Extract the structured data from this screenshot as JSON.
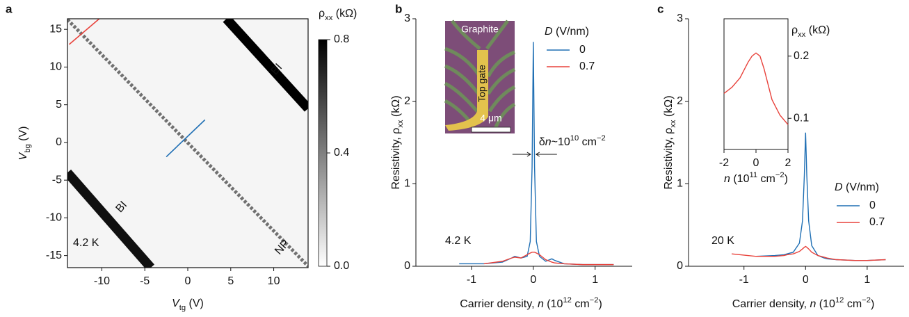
{
  "chart_data": [
    {
      "type": "heatmap",
      "panel": "a",
      "xlabel": [
        {
          "text": "V",
          "style": "i"
        },
        {
          "text": "tg",
          "style": "sub"
        },
        {
          "text": " (V)"
        }
      ],
      "ylabel": [
        {
          "text": "V",
          "style": "i"
        },
        {
          "text": "bg",
          "style": "sub"
        },
        {
          "text": " (V)"
        }
      ],
      "xlim": [
        -14,
        14
      ],
      "ylim": [
        -16.6,
        16.4
      ],
      "xticks": [
        -10,
        -5,
        0,
        5,
        10
      ],
      "yticks": [
        -15,
        -10,
        -5,
        0,
        5,
        10,
        15
      ],
      "colorbar": {
        "label": [
          {
            "text": "ρ"
          },
          {
            "text": "xx",
            "style": "sub"
          },
          {
            "text": " (kΩ)"
          }
        ],
        "lim": [
          0,
          0.8
        ],
        "ticks": [
          {
            "value": 0,
            "label": "0.0"
          },
          0.4,
          0.8
        ],
        "colors": [
          "#ffffff",
          "#000000"
        ]
      },
      "background": 0.03,
      "features": [
        {
          "label": "BI",
          "x": [
            4.5,
            14
          ],
          "y": [
            16.4,
            4.5
          ],
          "value": 0.8,
          "width": 1.1,
          "dashed": false
        },
        {
          "label": "BI",
          "x": [
            -14,
            -4.3
          ],
          "y": [
            -4,
            -16.6
          ],
          "value": 0.75,
          "width": 1.1,
          "dashed": false
        },
        {
          "label": "NP",
          "x": [
            -14,
            14
          ],
          "y": [
            16.3,
            -16.4
          ],
          "value": 0.45,
          "width": 0.4,
          "dashed": true
        }
      ],
      "cuts": [
        {
          "color": "#e8423b",
          "x": [
            -13.8,
            -10.3
          ],
          "y": [
            13,
            16.4
          ]
        },
        {
          "color": "#1f6fb4",
          "x": [
            -2.5,
            2
          ],
          "y": [
            -1.9,
            3
          ]
        }
      ],
      "annotation": "4.2 K"
    },
    {
      "type": "line",
      "panel": "b",
      "xlabel": [
        {
          "text": "Carrier density, "
        },
        {
          "text": "n",
          "style": "i"
        },
        {
          "text": " (10"
        },
        {
          "text": "12",
          "style": "sup"
        },
        {
          "text": " cm"
        },
        {
          "text": "−2",
          "style": "sup"
        },
        {
          "text": ")"
        }
      ],
      "ylabel": [
        {
          "text": "Resistivity, ρ"
        },
        {
          "text": "xx",
          "style": "sub"
        },
        {
          "text": " (kΩ)"
        }
      ],
      "xlim": [
        -1.9,
        1.6
      ],
      "ylim": [
        0,
        3
      ],
      "xticks": [
        -1,
        0,
        1
      ],
      "yticks": [
        0,
        1,
        2,
        3
      ],
      "x": [
        -1.2,
        -0.8,
        -0.5,
        -0.35,
        -0.3,
        -0.2,
        -0.1,
        -0.05,
        -0.02,
        0,
        0.02,
        0.05,
        0.1,
        0.2,
        0.3,
        0.35,
        0.5,
        0.8,
        1.0,
        1.3
      ],
      "legend_title": [
        {
          "text": "D",
          "style": "i"
        },
        {
          "text": " (V/nm)"
        }
      ],
      "series": [
        {
          "name": "0",
          "color": "#1f6fb4",
          "values": [
            0.03,
            0.03,
            0.05,
            0.1,
            0.12,
            0.1,
            0.12,
            0.3,
            1.2,
            2.72,
            1.2,
            0.3,
            0.12,
            0.06,
            0.09,
            0.07,
            0.03,
            0.02,
            0.02,
            0.02
          ]
        },
        {
          "name": "0.7",
          "color": "#e8423b",
          "values": [
            null,
            0.03,
            0.06,
            0.1,
            0.11,
            0.1,
            0.14,
            0.16,
            0.17,
            0.17,
            0.17,
            0.16,
            0.14,
            0.08,
            0.05,
            0.04,
            0.03,
            0.02,
            0.02,
            0.02
          ]
        }
      ],
      "annotation": "4.2 K",
      "width_label": [
        {
          "text": "δ"
        },
        {
          "text": "n",
          "style": "i"
        },
        {
          "text": "~10"
        },
        {
          "text": "10",
          "style": "sup"
        },
        {
          "text": " cm"
        },
        {
          "text": "−2",
          "style": "sup"
        }
      ],
      "inset": {
        "type": "image",
        "labels": [
          "Graphite",
          "Top gate"
        ],
        "scalebar": "4 μm"
      }
    },
    {
      "type": "line",
      "panel": "c",
      "xlabel": [
        {
          "text": "Carrier density, "
        },
        {
          "text": "n",
          "style": "i"
        },
        {
          "text": " (10"
        },
        {
          "text": "12",
          "style": "sup"
        },
        {
          "text": " cm"
        },
        {
          "text": "−2",
          "style": "sup"
        },
        {
          "text": ")"
        }
      ],
      "ylabel": [
        {
          "text": "Resistivity, ρ"
        },
        {
          "text": "xx",
          "style": "sub"
        },
        {
          "text": " (kΩ)"
        }
      ],
      "xlim": [
        -1.9,
        1.6
      ],
      "ylim": [
        0,
        3
      ],
      "xticks": [
        -1,
        0,
        1
      ],
      "yticks": [
        0,
        1,
        2,
        3
      ],
      "x": [
        -1.2,
        -0.8,
        -0.5,
        -0.35,
        -0.3,
        -0.2,
        -0.1,
        -0.05,
        -0.02,
        0,
        0.02,
        0.05,
        0.1,
        0.2,
        0.3,
        0.35,
        0.5,
        0.8,
        1.0,
        1.3
      ],
      "legend_title": [
        {
          "text": "D",
          "style": "i"
        },
        {
          "text": " (V/nm)"
        }
      ],
      "series": [
        {
          "name": "0",
          "color": "#1f6fb4",
          "values": [
            null,
            0.12,
            0.13,
            0.14,
            0.15,
            0.17,
            0.28,
            0.55,
            1.1,
            1.62,
            1.1,
            0.55,
            0.25,
            0.13,
            0.1,
            0.09,
            0.08,
            0.07,
            0.07,
            0.08
          ]
        },
        {
          "name": "0.7",
          "color": "#e8423b",
          "values": [
            0.15,
            0.12,
            0.12,
            0.13,
            0.14,
            0.15,
            0.18,
            0.21,
            0.23,
            0.24,
            0.23,
            0.21,
            0.17,
            0.13,
            0.11,
            0.1,
            0.08,
            0.07,
            0.07,
            0.08
          ]
        }
      ],
      "annotation": "20 K",
      "inset": {
        "type": "line",
        "xlabel": [
          {
            "text": "n",
            "style": "i"
          },
          {
            "text": " (10"
          },
          {
            "text": "11",
            "style": "sup"
          },
          {
            "text": " cm"
          },
          {
            "text": "−2",
            "style": "sup"
          },
          {
            "text": ")"
          }
        ],
        "ylabel": [
          {
            "text": "ρ"
          },
          {
            "text": "xx",
            "style": "sub"
          },
          {
            "text": " (kΩ)"
          }
        ],
        "xlim": [
          -2,
          2
        ],
        "ylim": [
          0.05,
          0.26
        ],
        "xticks": [
          -2,
          0,
          2
        ],
        "yticks": [
          0.1,
          0.2
        ],
        "x": [
          -2,
          -1.5,
          -1,
          -0.5,
          -0.25,
          0,
          0.25,
          0.5,
          1,
          1.5,
          2
        ],
        "series": [
          {
            "color": "#e8423b",
            "values": [
              0.14,
              0.15,
              0.165,
              0.19,
              0.2,
              0.205,
              0.2,
              0.18,
              0.13,
              0.105,
              0.09
            ]
          }
        ]
      }
    }
  ]
}
